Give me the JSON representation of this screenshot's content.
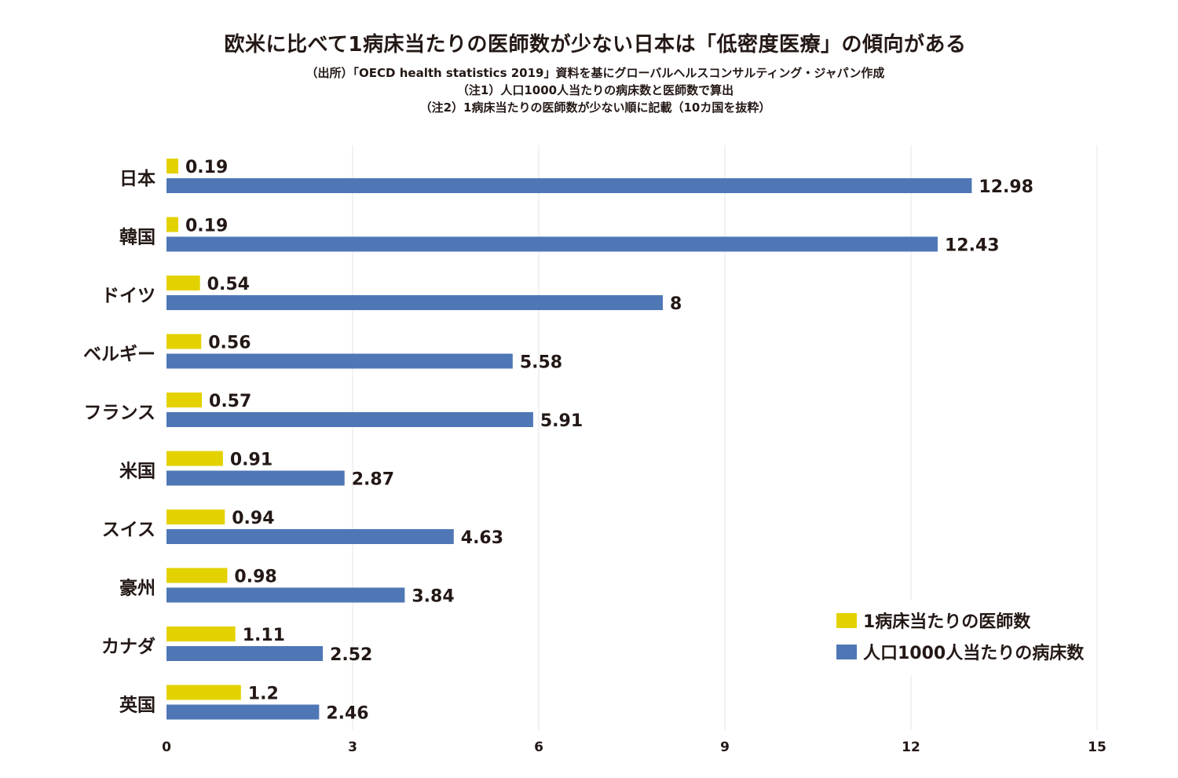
{
  "chart_data": {
    "type": "bar",
    "orientation": "horizontal",
    "title": "欧米に比べて1病床当たりの医師数が少ない日本は「低密度医療」の傾向がある",
    "subtitles": [
      "（出所）「OECD health statistics 2019」資料を基にグローバルヘルスコンサルティング・ジャパン作成",
      "（注1）人口1000人当たりの病床数と医師数で算出",
      "（注2）1病床当たりの医師数が少ない順に記載（10カ国を抜粋）"
    ],
    "categories": [
      "日本",
      "韓国",
      "ドイツ",
      "ベルギー",
      "フランス",
      "米国",
      "スイス",
      "豪州",
      "カナダ",
      "英国"
    ],
    "series": [
      {
        "name": "1病床当たりの医師数",
        "color": "#e3d200",
        "values": [
          0.19,
          0.19,
          0.54,
          0.56,
          0.57,
          0.91,
          0.94,
          0.98,
          1.11,
          1.2
        ],
        "labels": [
          "0.19",
          "0.19",
          "0.54",
          "0.56",
          "0.57",
          "0.91",
          "0.94",
          "0.98",
          "1.11",
          "1.2"
        ]
      },
      {
        "name": "人口1000人当たりの病床数",
        "color": "#4f77b6",
        "values": [
          12.98,
          12.43,
          8,
          5.58,
          5.91,
          2.87,
          4.63,
          3.84,
          2.52,
          2.46
        ],
        "labels": [
          "12.98",
          "12.43",
          "8",
          "5.58",
          "5.91",
          "2.87",
          "4.63",
          "3.84",
          "2.52",
          "2.46"
        ]
      }
    ],
    "xlim": [
      0,
      15
    ],
    "xticks": [
      "0",
      "3",
      "6",
      "9",
      "12",
      "15"
    ],
    "xtick_values": [
      0,
      3,
      6,
      9,
      12,
      15
    ],
    "grid": true,
    "legend": "bottom-right"
  }
}
